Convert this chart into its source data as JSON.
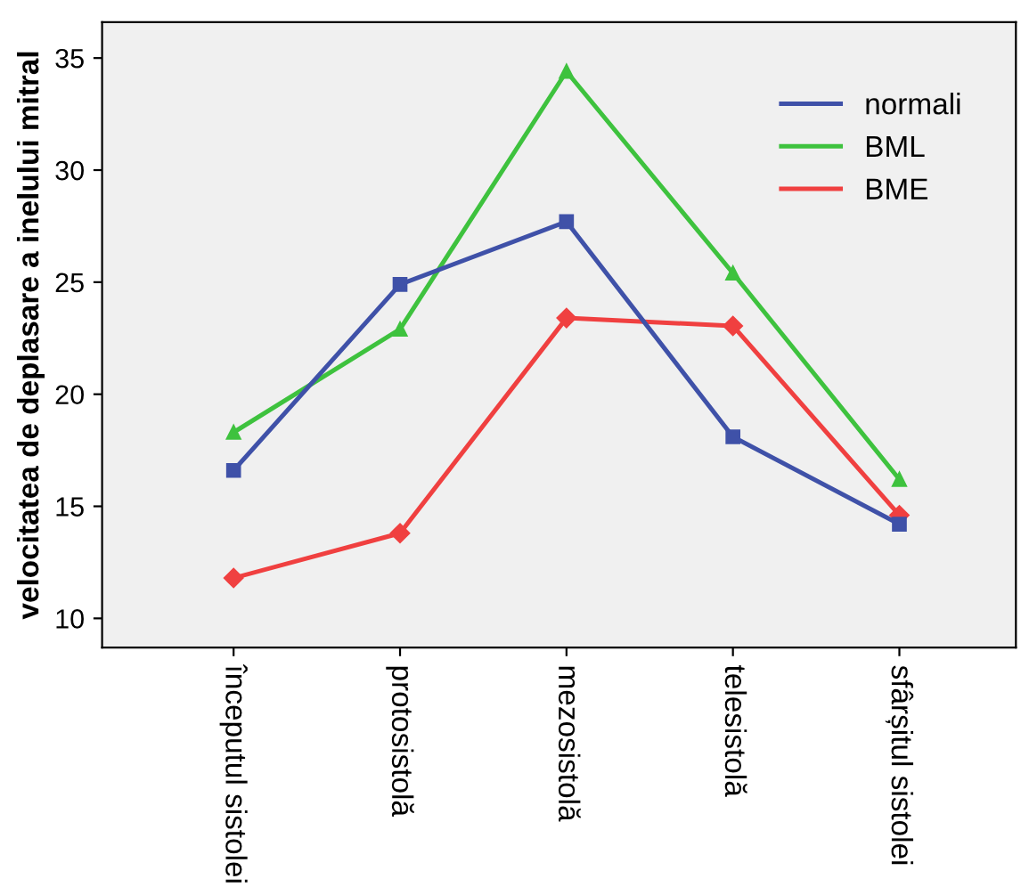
{
  "chart_data": {
    "type": "line",
    "ylabel": "velocitatea de deplasare a inelului mitral",
    "categories": [
      "începutul sistolei",
      "protosistolă",
      "mezosistolă",
      "telesistolă",
      "sfârșitul sistolei"
    ],
    "series": [
      {
        "name": "normali",
        "color": "#3f51a8",
        "marker": "square",
        "values": [
          16.6,
          24.9,
          27.7,
          18.1,
          14.2
        ]
      },
      {
        "name": "BML",
        "color": "#3ec23e",
        "marker": "triangle",
        "values": [
          18.3,
          22.9,
          34.4,
          25.4,
          16.2
        ]
      },
      {
        "name": "BME",
        "color": "#f04040",
        "marker": "diamond",
        "values": [
          11.8,
          13.8,
          23.4,
          23.05,
          14.6
        ]
      }
    ],
    "ylim": [
      8.7,
      36.6
    ],
    "yticks": [
      10,
      15,
      20,
      25,
      30,
      35
    ],
    "grid": false,
    "legend": "top right",
    "line_style": "solid"
  }
}
